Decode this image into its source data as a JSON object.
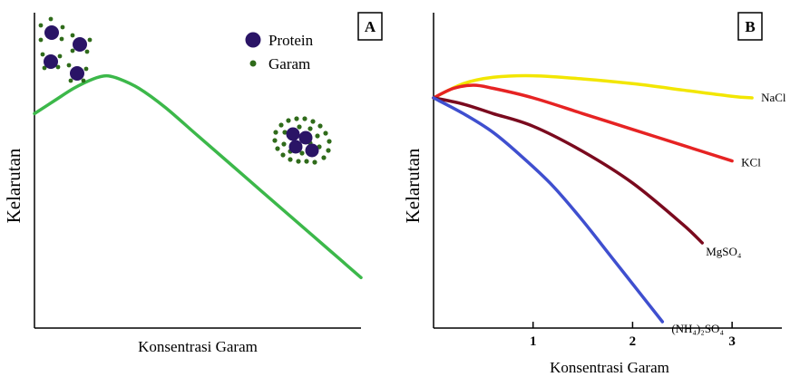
{
  "chart_data": [
    {
      "panel": "A",
      "type": "line",
      "title": "",
      "xlabel": "Konsentrasi Garam",
      "ylabel": "Kelarutan",
      "xlim": [
        0,
        10
      ],
      "ylim": [
        0,
        10
      ],
      "grid": false,
      "legend": {
        "placement": "top-right",
        "entries": [
          {
            "label": "Protein",
            "color": "#2a1466",
            "marker": "large-circle"
          },
          {
            "label": "Garam",
            "color": "#2f6b1a",
            "marker": "small-dot"
          }
        ]
      },
      "series": [
        {
          "color": "#3cb84a",
          "x": [
            0,
            0.6,
            1.2,
            1.8,
            2.2,
            2.6,
            3.2,
            4.0,
            5.0,
            6.0,
            7.0,
            8.0,
            9.0,
            10.0
          ],
          "y": [
            6.8,
            7.2,
            7.6,
            7.9,
            8.0,
            7.9,
            7.6,
            7.0,
            6.1,
            5.2,
            4.3,
            3.4,
            2.5,
            1.6
          ]
        }
      ],
      "illustrations": [
        "protein-salt-dispersed",
        "protein-salt-aggregate"
      ]
    },
    {
      "panel": "B",
      "type": "line",
      "title": "",
      "xlabel": "Konsentrasi Garam",
      "ylabel": "Kelarutan",
      "xlim": [
        0,
        3.5
      ],
      "ylim": [
        0,
        10
      ],
      "xticks": [
        1,
        2,
        3
      ],
      "tick_labels": [
        "1",
        "2",
        "3"
      ],
      "grid": false,
      "series": [
        {
          "name": "NaCl",
          "color": "#f2e600",
          "x": [
            0,
            0.3,
            0.6,
            1.0,
            1.5,
            2.0,
            2.5,
            3.0,
            3.2
          ],
          "y": [
            7.3,
            7.75,
            7.95,
            8.0,
            7.9,
            7.75,
            7.55,
            7.35,
            7.3
          ]
        },
        {
          "name": "KCl",
          "color": "#e62323",
          "x": [
            0,
            0.2,
            0.4,
            0.6,
            1.0,
            1.5,
            2.0,
            2.5,
            3.0
          ],
          "y": [
            7.3,
            7.6,
            7.7,
            7.6,
            7.3,
            6.8,
            6.3,
            5.8,
            5.3
          ]
        },
        {
          "name": "MgSO₄",
          "color": "#7a0a1e",
          "x": [
            0,
            0.3,
            0.6,
            1.0,
            1.5,
            2.0,
            2.5,
            2.7
          ],
          "y": [
            7.3,
            7.1,
            6.8,
            6.4,
            5.6,
            4.6,
            3.3,
            2.7
          ]
        },
        {
          "name": "(NH₄)₂SO₄",
          "color": "#3f4fcf",
          "x": [
            0,
            0.3,
            0.6,
            0.9,
            1.2,
            1.5,
            1.8,
            2.1,
            2.3
          ],
          "y": [
            7.3,
            6.8,
            6.2,
            5.4,
            4.5,
            3.4,
            2.2,
            1.0,
            0.2
          ]
        }
      ]
    }
  ]
}
